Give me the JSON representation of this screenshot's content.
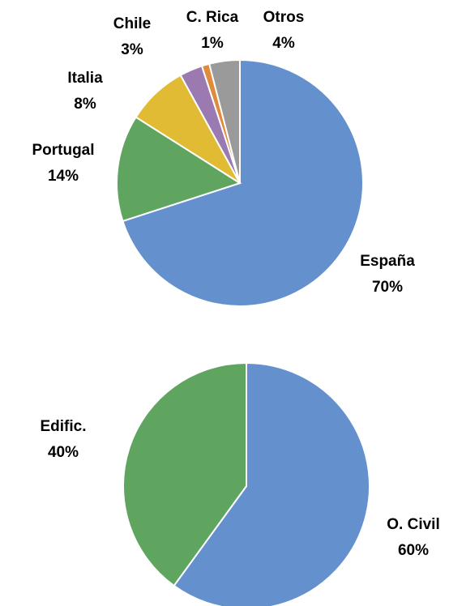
{
  "chart_data": [
    {
      "type": "pie",
      "categories": [
        "España",
        "Portugal",
        "Italia",
        "Chile",
        "C. Rica",
        "Otros"
      ],
      "values": [
        70,
        14,
        8,
        3,
        1,
        4
      ],
      "value_labels": [
        "70%",
        "14%",
        "8%",
        "3%",
        "1%",
        "4%"
      ],
      "colors": [
        "#6491cd",
        "#5fa55f",
        "#e0bb33",
        "#9a7ab0",
        "#e08a3b",
        "#9a9a9a"
      ]
    },
    {
      "type": "pie",
      "categories": [
        "O. Civil",
        "Edific."
      ],
      "values": [
        60,
        40
      ],
      "value_labels": [
        "60%",
        "40%"
      ],
      "colors": [
        "#6491cd",
        "#5fa55f"
      ]
    }
  ]
}
